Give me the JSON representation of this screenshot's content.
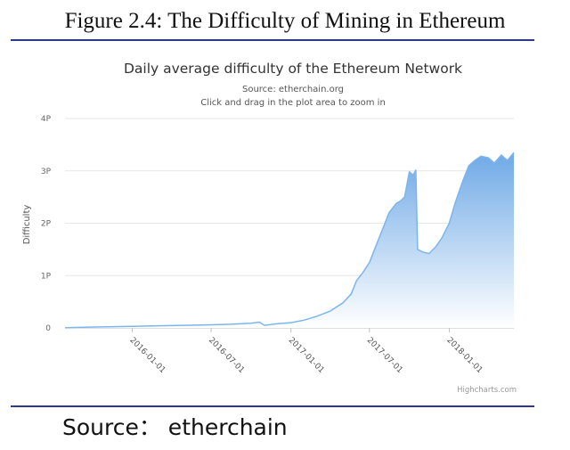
{
  "figure_caption": "Figure 2.4: The Difficulty of Mining in Ethereum",
  "source_text": "Source：  etherchain",
  "credits": "Highcharts.com",
  "colors": {
    "line": "#7cb5ec",
    "area_top": "#6fa9e6",
    "area_bottom": "#ffffff",
    "rule": "#2b3a8c",
    "grid": "#e6e6e6"
  },
  "chart_data": {
    "type": "area",
    "title": "Daily average difficulty of the Ethereum Network",
    "subtitle": "Source: etherchain.org",
    "subtitle2": "Click and drag in the plot area to zoom in",
    "ylabel": "Difficulty",
    "xlabel": "",
    "y_unit": "P",
    "ylim": [
      0,
      4
    ],
    "yticks": [
      0,
      1,
      2,
      3,
      4
    ],
    "ytick_labels": [
      "0",
      "1P",
      "2P",
      "3P",
      "4P"
    ],
    "xlim": [
      "2015-07-30",
      "2018-05-30"
    ],
    "xticks": [
      "2016-01-01",
      "2016-07-01",
      "2017-01-01",
      "2017-07-01",
      "2018-01-01"
    ],
    "grid": true,
    "legend": "none",
    "series": [
      {
        "x": [
          "2015-07-30",
          "2015-09-01",
          "2015-11-01",
          "2016-01-01",
          "2016-03-01",
          "2016-05-01",
          "2016-07-01",
          "2016-08-15",
          "2016-10-01",
          "2016-10-20",
          "2016-11-01",
          "2016-12-01",
          "2017-01-01",
          "2017-02-01",
          "2017-03-01",
          "2017-04-01",
          "2017-05-01",
          "2017-05-20",
          "2017-06-01",
          "2017-06-15",
          "2017-07-01",
          "2017-07-15",
          "2017-08-01",
          "2017-08-15",
          "2017-09-01",
          "2017-09-10",
          "2017-09-20",
          "2017-10-01",
          "2017-10-10",
          "2017-10-16",
          "2017-10-20",
          "2017-11-01",
          "2017-11-15",
          "2017-12-01",
          "2017-12-15",
          "2018-01-01",
          "2018-01-15",
          "2018-02-01",
          "2018-02-15",
          "2018-03-01",
          "2018-03-15",
          "2018-04-01",
          "2018-04-15",
          "2018-05-01",
          "2018-05-15",
          "2018-05-30"
        ],
        "values": [
          0.001,
          0.01,
          0.02,
          0.03,
          0.04,
          0.05,
          0.06,
          0.07,
          0.09,
          0.11,
          0.05,
          0.08,
          0.1,
          0.15,
          0.22,
          0.32,
          0.48,
          0.65,
          0.9,
          1.05,
          1.25,
          1.55,
          1.9,
          2.2,
          2.38,
          2.42,
          2.5,
          2.98,
          2.92,
          3.02,
          1.5,
          1.45,
          1.42,
          1.55,
          1.72,
          2.0,
          2.4,
          2.8,
          3.1,
          3.2,
          3.28,
          3.25,
          3.15,
          3.3,
          3.2,
          3.35
        ]
      }
    ]
  }
}
